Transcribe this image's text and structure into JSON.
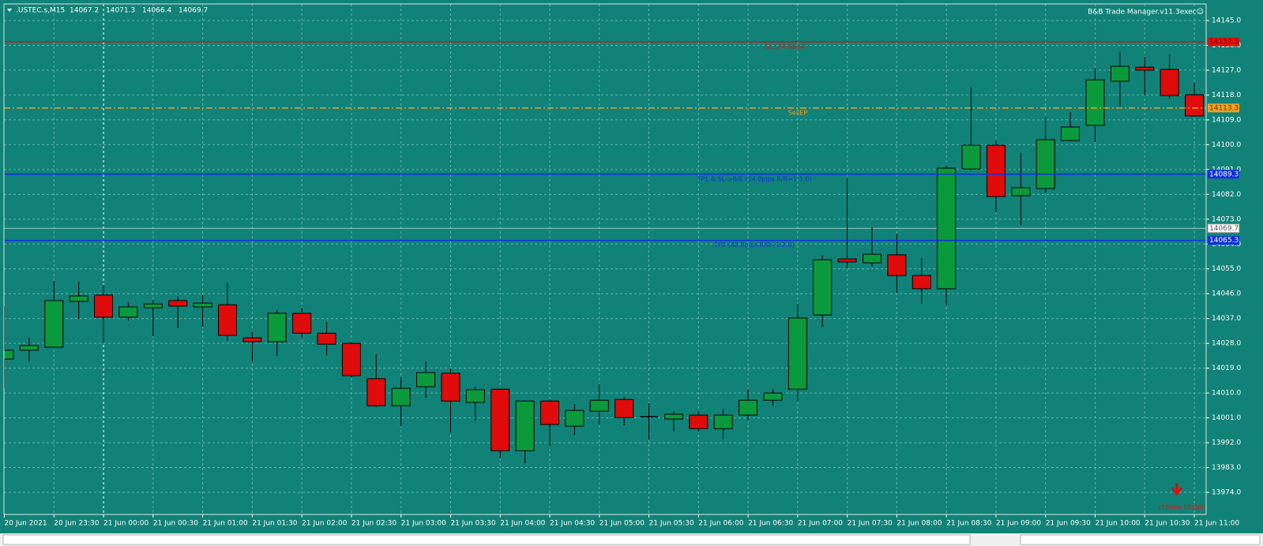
{
  "chart_data": {
    "type": "candlestick",
    "title": ".USTEC.s,M15",
    "header_values": [
      14067.2,
      14071.3,
      14066.4,
      14069.7
    ],
    "indicator": "B&B Trade Manager.v11.3exec☺",
    "categories": [
      "20 Jun 2021",
      null,
      "20 Jun 23:30",
      null,
      "21 Jun 00:00",
      null,
      "21 Jun 00:30",
      null,
      "21 Jun 01:00",
      null,
      "21 Jun 01:30",
      null,
      "21 Jun 02:00",
      null,
      "21 Jun 02:30",
      null,
      "21 Jun 03:00",
      null,
      "21 Jun 03:30",
      null,
      "21 Jun 04:00",
      null,
      "21 Jun 04:30",
      null,
      "21 Jun 05:00",
      null,
      "21 Jun 05:30",
      null,
      "21 Jun 06:00",
      null,
      "21 Jun 06:30",
      null,
      "21 Jun 07:00",
      null,
      "21 Jun 07:30",
      null,
      "21 Jun 08:00",
      null,
      "21 Jun 08:30",
      null,
      "21 Jun 09:00",
      null,
      "21 Jun 09:30",
      null,
      "21 Jun 10:00",
      null,
      "21 Jun 10:30",
      null,
      "21 Jun 11:00"
    ],
    "open": [
      14022.3,
      14025.5,
      14026.6,
      14043.2,
      14045.5,
      14037.5,
      14040.9,
      14043.5,
      14041.2,
      14042.0,
      14030.0,
      14028.6,
      14038.9,
      14031.7,
      14028.0,
      14015.2,
      14005.4,
      14012.3,
      14017.2,
      14006.6,
      14011.4,
      13989.1,
      14007.1,
      13998.0,
      14003.4,
      14007.7,
      14001.4,
      14000.6,
      14002.0,
      13997.1,
      14002.0,
      14007.4,
      14011.4,
      14038.3,
      14058.6,
      14057.2,
      14060.1,
      14052.6,
      14047.8,
      14091.2,
      14099.8,
      14081.5,
      14084.1,
      14101.5,
      14107.0,
      14123.0,
      14128.1,
      14127.3,
      14118.1
    ],
    "high": [
      14041.5,
      14030.0,
      14050.6,
      14050.3,
      14049.2,
      14042.9,
      14043.8,
      14044.9,
      14045.5,
      14049.8,
      14032.3,
      14040.0,
      14040.9,
      14035.7,
      14028.6,
      14024.0,
      14015.7,
      14021.4,
      14018.9,
      14012.3,
      14011.7,
      14007.4,
      14007.7,
      14006.0,
      14013.2,
      14008.6,
      14006.3,
      14003.4,
      14003.4,
      14004.3,
      14011.4,
      14011.4,
      14042.3,
      14059.8,
      14087.8,
      14070.1,
      14067.8,
      14058.9,
      14092.4,
      14120.7,
      14101.5,
      14097.0,
      14110.1,
      14111.8,
      14127.8,
      14133.6,
      14131.8,
      14132.7,
      14122.4
    ],
    "low": [
      14011.7,
      14021.4,
      14026.6,
      14036.9,
      14028.3,
      14036.3,
      14030.6,
      14033.5,
      14034.0,
      14028.9,
      14021.4,
      14023.4,
      14030.0,
      14023.7,
      14015.7,
      14004.9,
      13998.0,
      14008.3,
      13995.7,
      14000.0,
      13986.3,
      13984.6,
      13990.8,
      13994.8,
      13998.6,
      13998.3,
      13993.1,
      13996.0,
      13996.0,
      13993.4,
      14000.0,
      14005.4,
      14006.9,
      14034.0,
      14055.2,
      14055.8,
      14046.3,
      14042.3,
      14041.8,
      14090.7,
      14075.5,
      14070.9,
      14082.4,
      14101.2,
      14101.0,
      14113.0,
      14117.8,
      14116.7,
      14110.4
    ],
    "close": [
      14025.5,
      14027.2,
      14043.5,
      14045.2,
      14037.5,
      14041.2,
      14042.3,
      14041.5,
      14042.6,
      14030.9,
      14028.6,
      14038.9,
      14031.7,
      14027.7,
      14016.3,
      14005.4,
      14011.7,
      14017.4,
      14007.1,
      14011.2,
      13989.1,
      14007.1,
      13998.6,
      14003.7,
      14007.4,
      14001.1,
      14001.4,
      14002.3,
      13997.1,
      14002.0,
      14007.4,
      14010.0,
      14037.2,
      14058.3,
      14057.5,
      14060.3,
      14052.6,
      14047.8,
      14091.5,
      14099.8,
      14081.2,
      14084.4,
      14101.8,
      14106.4,
      14123.5,
      14128.4,
      14127.0,
      14117.8,
      14110.4
    ],
    "up_color": "#0b9a3b",
    "down_color": "#e00b0b",
    "ylim": [
      13966.0,
      14151.0
    ],
    "yticks": [
      {
        "value": 13974,
        "label": "13974.0"
      },
      {
        "value": 13983,
        "label": "13983.0"
      },
      {
        "value": 13992,
        "label": "13992.0"
      },
      {
        "value": 14001,
        "label": "14001.0"
      },
      {
        "value": 14010,
        "label": "14010.0"
      },
      {
        "value": 14019,
        "label": "14019.0"
      },
      {
        "value": 14028,
        "label": "14028.0"
      },
      {
        "value": 14037,
        "label": "14037.0"
      },
      {
        "value": 14046,
        "label": "14046.0"
      },
      {
        "value": 14055,
        "label": "14055.0"
      },
      {
        "value": 14064,
        "label": "14064.0"
      },
      {
        "value": 14073,
        "label": "14073.0"
      },
      {
        "value": 14082,
        "label": "14082.0"
      },
      {
        "value": 14091,
        "label": "14091.0"
      },
      {
        "value": 14100,
        "label": "14100.0"
      },
      {
        "value": 14109,
        "label": "14109.0"
      },
      {
        "value": 14118,
        "label": "14118.0"
      },
      {
        "value": 14127,
        "label": "14127.0"
      },
      {
        "value": 14136,
        "label": "14136.0"
      },
      {
        "value": 14145,
        "label": "14145.0"
      }
    ],
    "grid": true,
    "levels": [
      {
        "label": "SL (24.0pips)",
        "value": 14137.3,
        "color": "#e01010",
        "style": "solid"
      },
      {
        "label": "SellEP",
        "value": 14113.3,
        "color": "#f0a020",
        "style": "dashdot"
      },
      {
        "label": "TP1 & SL->B/E (24.0pips R/R=1:1.0)",
        "value": 14089.3,
        "color": "#1030e0",
        "style": "solid"
      },
      {
        "label": "TP2 (48.0pips R/R=1:2.0)",
        "value": 14065.3,
        "color": "#1030e0",
        "style": "solid"
      }
    ],
    "current_price": 14069.7,
    "timer_label": "(15min 10:00)"
  }
}
